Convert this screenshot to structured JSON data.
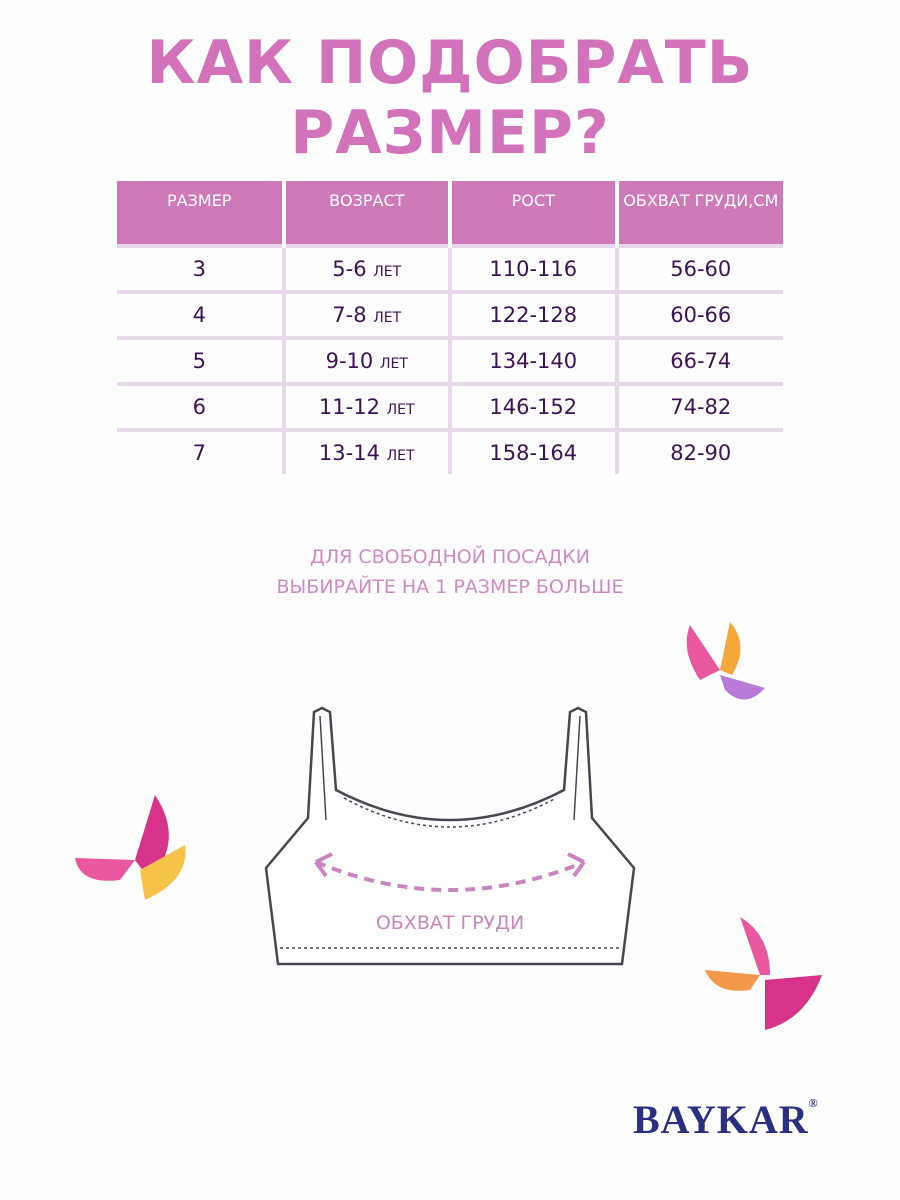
{
  "title": "КАК ПОДОБРАТЬ РАЗМЕР?",
  "table": {
    "headers": [
      "РАЗМЕР",
      "ВОЗРАСТ",
      "РОСТ",
      "ОБХВАТ ГРУДИ,СМ"
    ],
    "rows": [
      {
        "size": "3",
        "age": "5-6",
        "age_unit": "ЛЕТ",
        "height": "110-116",
        "chest": "56-60"
      },
      {
        "size": "4",
        "age": "7-8",
        "age_unit": "ЛЕТ",
        "height": "122-128",
        "chest": "60-66"
      },
      {
        "size": "5",
        "age": "9-10",
        "age_unit": "ЛЕТ",
        "height": "134-140",
        "chest": "66-74"
      },
      {
        "size": "6",
        "age": "11-12",
        "age_unit": "ЛЕТ",
        "height": "146-152",
        "chest": "74-82"
      },
      {
        "size": "7",
        "age": "13-14",
        "age_unit": "ЛЕТ",
        "height": "158-164",
        "chest": "82-90"
      }
    ]
  },
  "note": {
    "line1": "ДЛЯ СВОБОДНОЙ ПОСАДКИ",
    "line2": "ВЫБИРАЙТЕ НА 1 РАЗМЕР БОЛЬШЕ"
  },
  "diagram": {
    "label": "ОБХВАТ ГРУДИ"
  },
  "brand": {
    "name": "BAYKAR",
    "mark": "®"
  },
  "colors": {
    "accent": "#cf7ab8",
    "text": "#3c1256",
    "brand": "#2b2f82"
  }
}
